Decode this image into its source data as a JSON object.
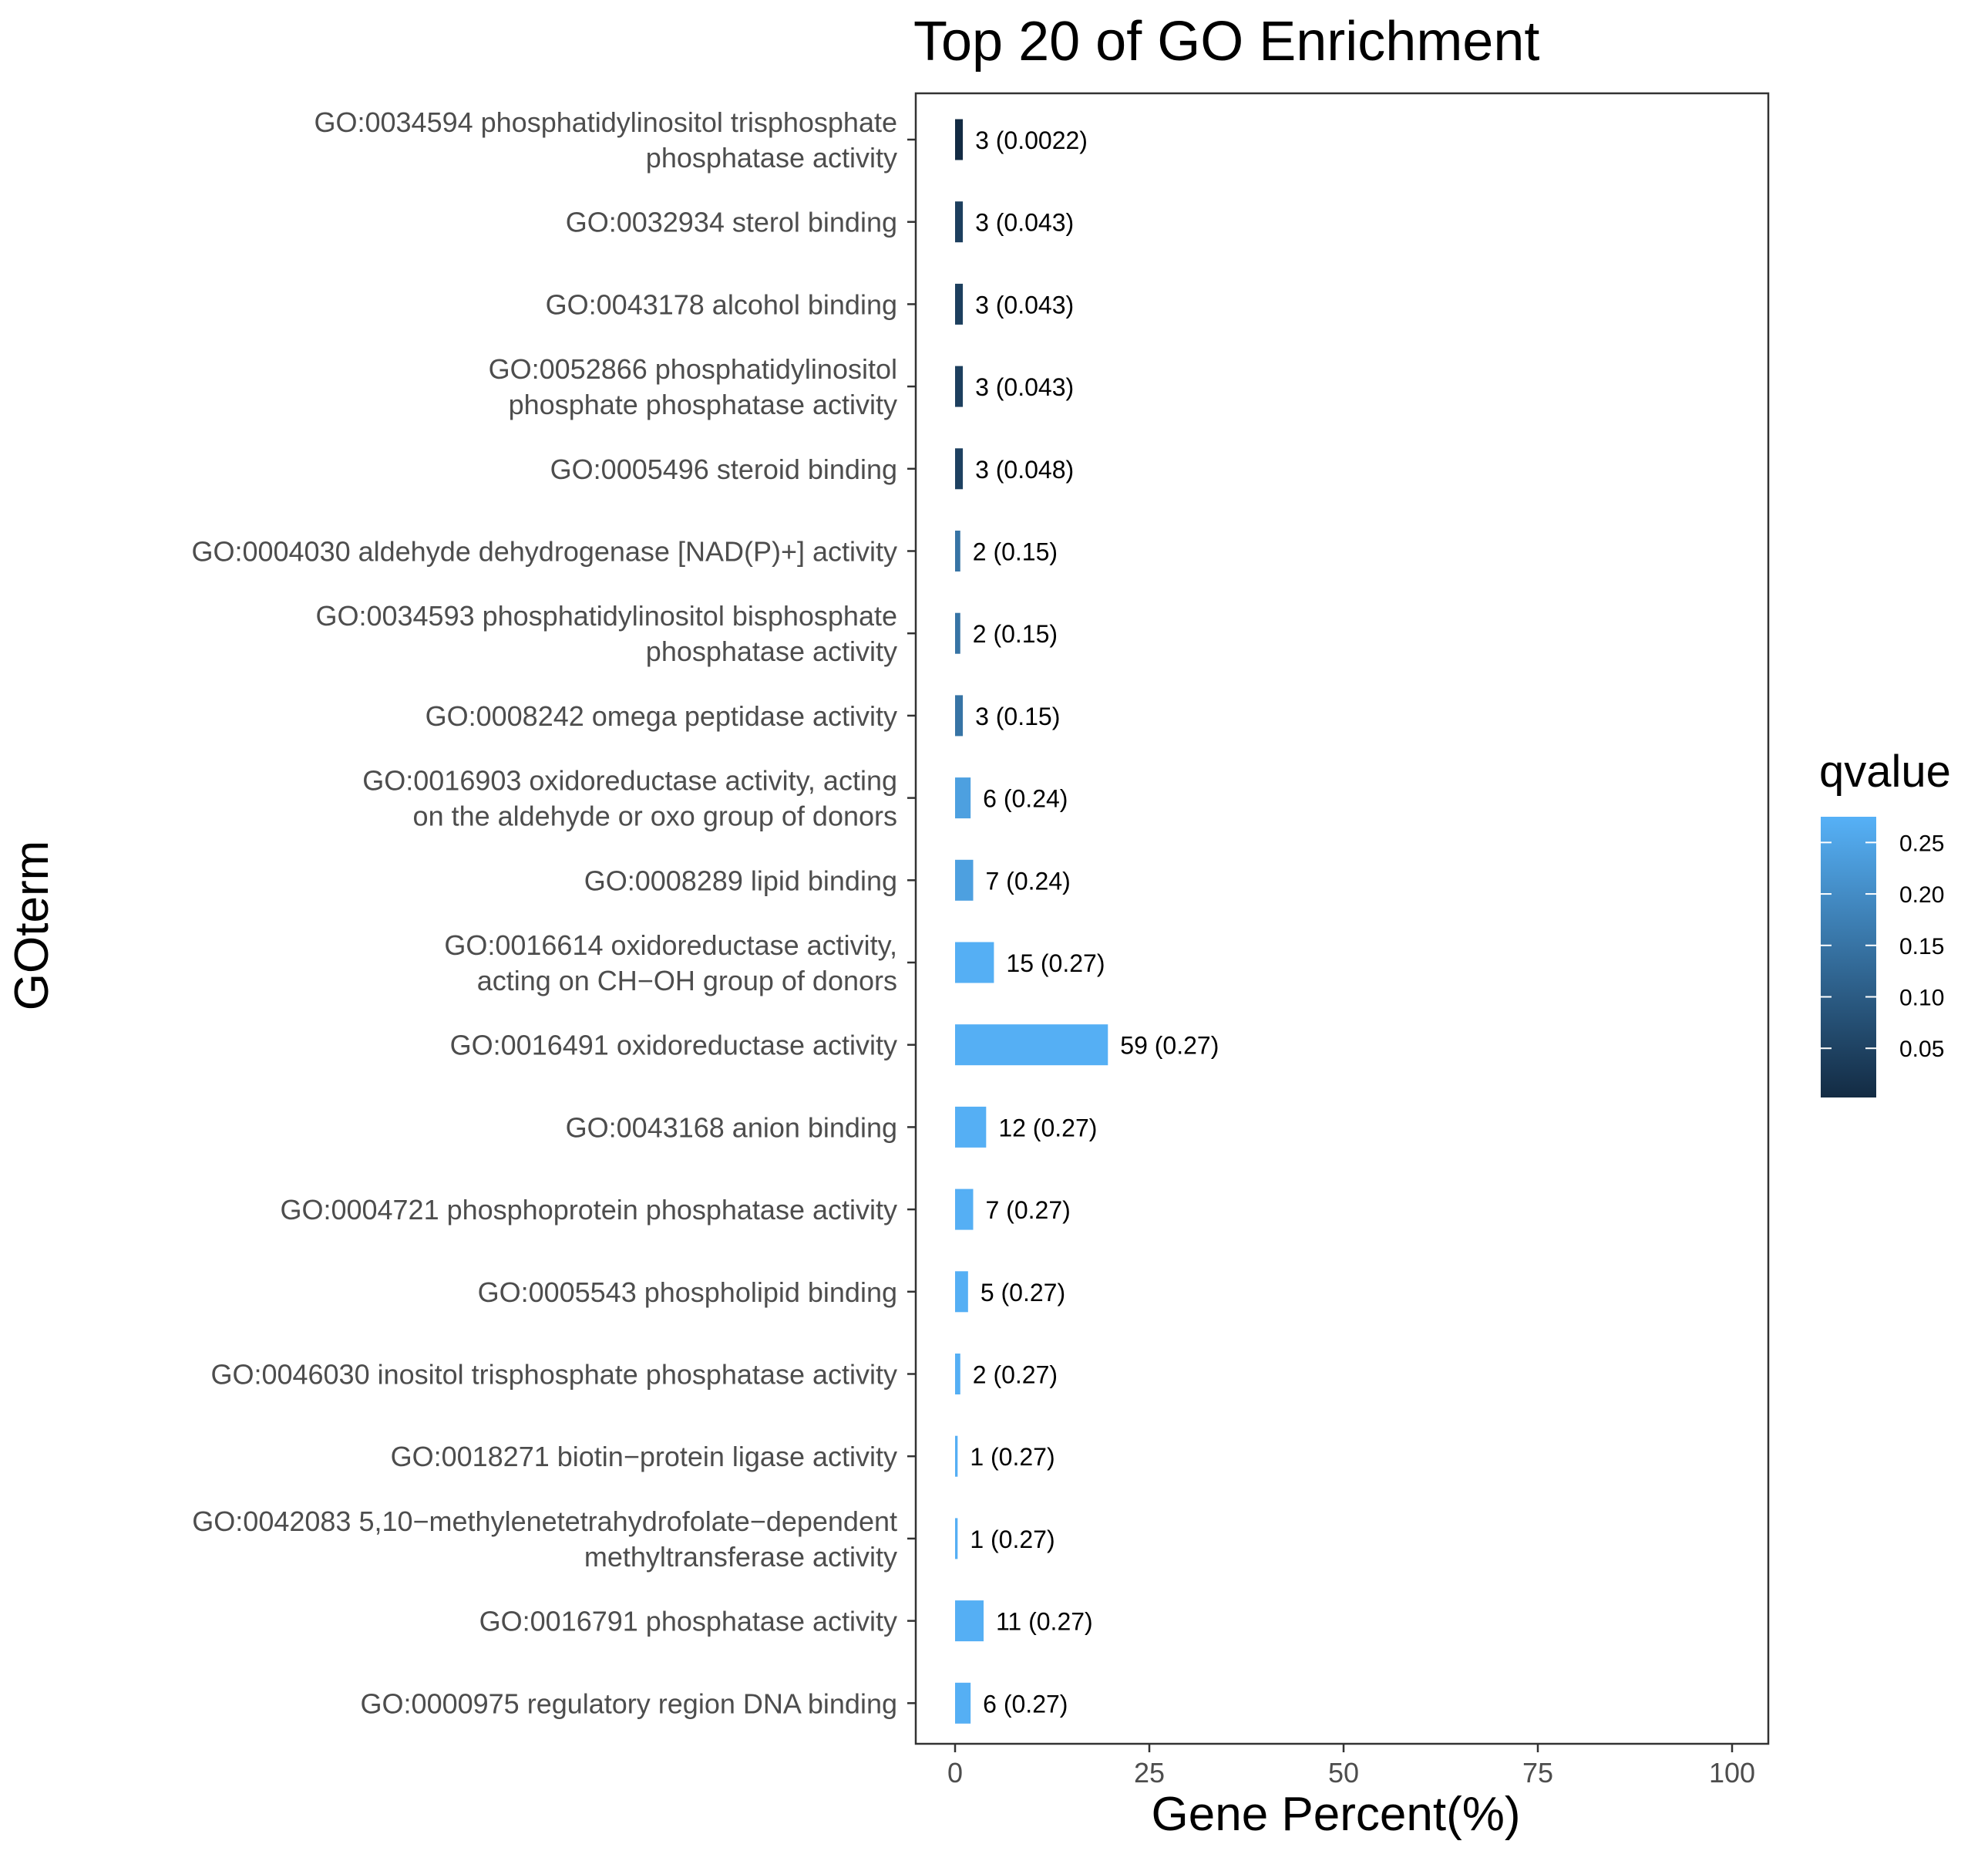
{
  "chart_data": {
    "type": "bar",
    "orientation": "horizontal",
    "title": "Top 20 of GO Enrichment",
    "xlabel": "Gene Percent(%)",
    "ylabel": "GOterm",
    "xlim": [
      -5,
      105
    ],
    "xticks": [
      0,
      25,
      50,
      75,
      100
    ],
    "grid": false,
    "categories": [
      [
        "GO:0034594 phosphatidylinositol trisphosphate",
        "phosphatase activity"
      ],
      [
        "GO:0032934 sterol binding"
      ],
      [
        "GO:0043178 alcohol binding"
      ],
      [
        "GO:0052866 phosphatidylinositol",
        "phosphate phosphatase activity"
      ],
      [
        "GO:0005496 steroid binding"
      ],
      [
        "GO:0004030 aldehyde dehydrogenase [NAD(P)+] activity"
      ],
      [
        "GO:0034593 phosphatidylinositol bisphosphate",
        "phosphatase activity"
      ],
      [
        "GO:0008242 omega peptidase activity"
      ],
      [
        "GO:0016903 oxidoreductase activity, acting",
        "on the aldehyde or oxo group of donors"
      ],
      [
        "GO:0008289 lipid binding"
      ],
      [
        "GO:0016614 oxidoreductase activity,",
        "acting on CH−OH group of donors"
      ],
      [
        "GO:0016491 oxidoreductase activity"
      ],
      [
        "GO:0043168 anion binding"
      ],
      [
        "GO:0004721 phosphoprotein phosphatase activity"
      ],
      [
        "GO:0005543 phospholipid binding"
      ],
      [
        "GO:0046030 inositol trisphosphate phosphatase activity"
      ],
      [
        "GO:0018271 biotin−protein ligase activity"
      ],
      [
        "GO:0042083 5,10−methylenetetrahydrofolate−dependent",
        "methyltransferase activity"
      ],
      [
        "GO:0016791 phosphatase activity"
      ],
      [
        "GO:0000975 regulatory region DNA binding"
      ]
    ],
    "values": [
      1.0,
      1.0,
      1.0,
      1.0,
      1.0,
      0.67,
      0.67,
      1.0,
      2.0,
      2.33,
      5.0,
      19.67,
      4.0,
      2.33,
      1.67,
      0.67,
      0.33,
      0.33,
      3.67,
      2.0
    ],
    "qvalues": [
      0.0022,
      0.043,
      0.043,
      0.043,
      0.048,
      0.15,
      0.15,
      0.15,
      0.24,
      0.24,
      0.27,
      0.27,
      0.27,
      0.27,
      0.27,
      0.27,
      0.27,
      0.27,
      0.27,
      0.27
    ],
    "data_labels": [
      "3 (0.0022)",
      "3 (0.043)",
      "3 (0.043)",
      "3 (0.043)",
      "3 (0.048)",
      "2 (0.15)",
      "2 (0.15)",
      "3 (0.15)",
      "6 (0.24)",
      "7 (0.24)",
      "15 (0.27)",
      "59 (0.27)",
      "12 (0.27)",
      "7 (0.27)",
      "5 (0.27)",
      "2 (0.27)",
      "1 (0.27)",
      "1 (0.27)",
      "11 (0.27)",
      "6 (0.27)"
    ],
    "legend": {
      "title": "qvalue",
      "placement": "right",
      "range": [
        0.0022,
        0.275
      ],
      "ticks": [
        0.05,
        0.1,
        0.15,
        0.2,
        0.25
      ],
      "tick_labels": [
        "0.05",
        "0.10",
        "0.15",
        "0.20",
        "0.25"
      ],
      "color_low": "#132b43",
      "color_high": "#56b1f7"
    }
  }
}
